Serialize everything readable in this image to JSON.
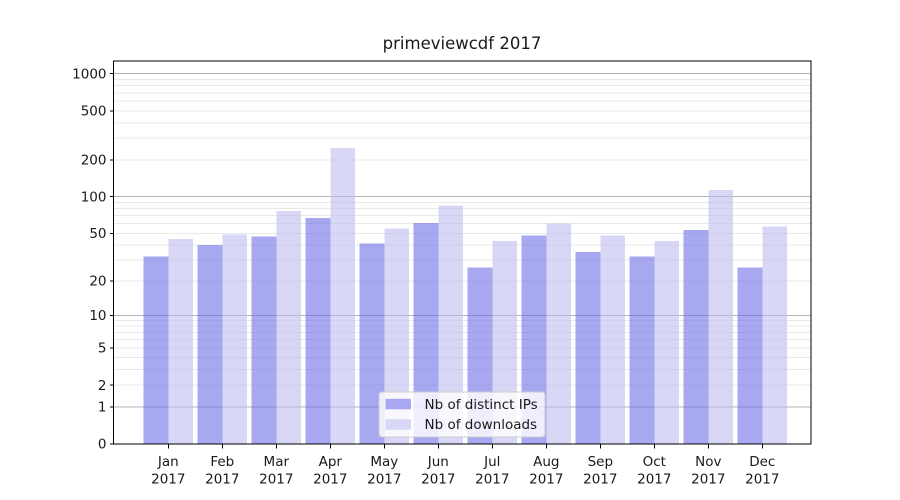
{
  "chart_data": {
    "type": "bar",
    "title": "primeviewcdf 2017",
    "categories": [
      "Jan 2017",
      "Feb 2017",
      "Mar 2017",
      "Apr 2017",
      "May 2017",
      "Jun 2017",
      "Jul 2017",
      "Aug 2017",
      "Sep 2017",
      "Oct 2017",
      "Nov 2017",
      "Dec 2017"
    ],
    "series": [
      {
        "name": "Nb of distinct IPs",
        "color": "#6666e6",
        "alpha": 0.57,
        "values": [
          32,
          40,
          47,
          67,
          41,
          61,
          26,
          48,
          35,
          32,
          53,
          26
        ]
      },
      {
        "name": "Nb of downloads",
        "color": "#bbbbf0",
        "alpha": 0.57,
        "values": [
          45,
          49,
          76,
          250,
          55,
          85,
          43,
          60,
          48,
          43,
          113,
          57
        ]
      }
    ],
    "xlabel": "",
    "ylabel": "",
    "yscale": "log1p",
    "ylim": [
      0,
      1300
    ],
    "yticks": [
      0,
      1,
      2,
      5,
      10,
      20,
      50,
      100,
      200,
      500,
      1000
    ],
    "grid": true,
    "legend_position": "lower-center",
    "colors": {
      "major_grid": "#b6b6b6",
      "minor_grid": "#e9e9e9",
      "spine": "#000000",
      "text": "#1a1a1a",
      "legend_border": "#cccccc",
      "legend_bg_rgba": "255,255,255,0.8"
    }
  }
}
